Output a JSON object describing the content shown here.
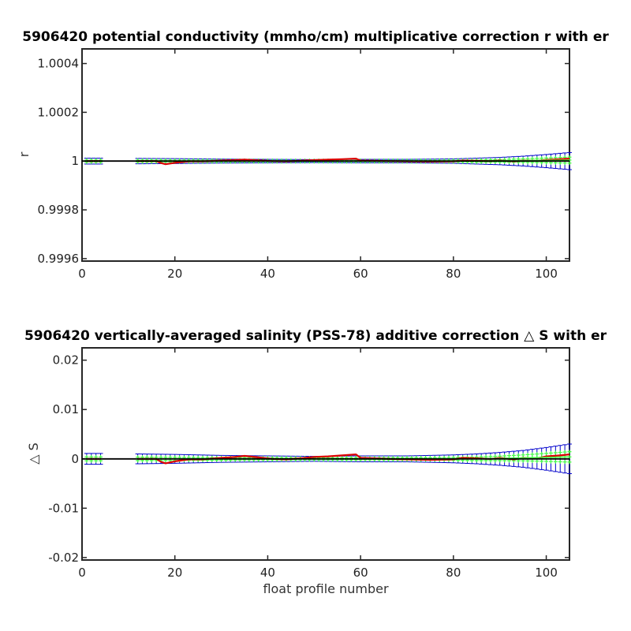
{
  "chart_data": [
    {
      "type": "line",
      "title": "5906420 potential conductivity (mmho/cm) multiplicative correction r with er",
      "xlabel": "",
      "ylabel": "r",
      "xlim": [
        0,
        105
      ],
      "ylim": [
        0.99959,
        1.00046
      ],
      "x_ticks": [
        0,
        20,
        40,
        60,
        80,
        100
      ],
      "y_ticks": [
        1.0004,
        1.0002,
        1,
        0.9998,
        0.9996
      ],
      "y_tick_labels": [
        "1.0004",
        "1.0002",
        "1",
        "0.9998",
        "0.9996"
      ],
      "grid": false,
      "error_half_width": {
        "x": [
          1,
          4,
          12,
          20,
          30,
          40,
          50,
          60,
          70,
          80,
          85,
          90,
          95,
          100,
          105
        ],
        "values": [
          1.2e-05,
          1.2e-05,
          1.1e-05,
          1e-05,
          8e-06,
          7e-06,
          6e-06,
          7e-06,
          7e-06,
          9e-06,
          1.2e-05,
          1.5e-05,
          2e-05,
          2.7e-05,
          3.5e-05
        ]
      },
      "series": [
        {
          "color": "#dd0000",
          "x": [
            1,
            4,
            12,
            16,
            17,
            18,
            20,
            23,
            26,
            30,
            33,
            35,
            38,
            41,
            44,
            47,
            50,
            53,
            56,
            59,
            60,
            63,
            66,
            70,
            75,
            80,
            82,
            85,
            88,
            90,
            93,
            95,
            98,
            100,
            103,
            105
          ],
          "values": [
            1.0,
            1.0,
            1.0,
            1.0,
            0.999992,
            0.999987,
            0.999993,
            0.999999,
            0.999999,
            1.000002,
            1.000004,
            1.000006,
            1.000003,
            1.0,
            0.999999,
            1.000001,
            1.000004,
            1.000006,
            1.000008,
            1.00001,
            1.000002,
            1.000001,
            1.0,
            0.999999,
            0.999998,
            0.999999,
            1.000002,
            1.000001,
            1.0,
            1.000002,
            0.999999,
            1.000002,
            1.000001,
            1.000005,
            1.000008,
            1.00001
          ]
        },
        {
          "color": "#44ff44",
          "x": [
            1,
            4,
            12,
            20,
            30,
            40,
            50,
            60,
            70,
            80,
            85,
            90,
            95,
            100,
            105
          ],
          "values": [
            1.0,
            1.0,
            1.0,
            1.0,
            1.0,
            1.0,
            1.0,
            1.0,
            1.0,
            1.0,
            1.0,
            1.000001,
            1.000002,
            1.000003,
            1.000004
          ]
        },
        {
          "color": "#000000",
          "x": [
            0,
            105
          ],
          "values": [
            1.0,
            1.0
          ]
        }
      ]
    },
    {
      "type": "line",
      "title": "5906420 vertically-averaged salinity (PSS-78) additive correction △ S with er",
      "xlabel": "float profile number",
      "ylabel": "△ S",
      "xlim": [
        0,
        105
      ],
      "ylim": [
        -0.0205,
        0.0225
      ],
      "x_ticks": [
        0,
        20,
        40,
        60,
        80,
        100
      ],
      "y_ticks": [
        0.02,
        0.01,
        0,
        -0.01,
        -0.02
      ],
      "y_tick_labels": [
        "0.02",
        "0.01",
        "0",
        "-0.01",
        "-0.02"
      ],
      "grid": false,
      "error_half_width": {
        "x": [
          1,
          4,
          12,
          20,
          30,
          40,
          50,
          60,
          70,
          80,
          85,
          90,
          95,
          100,
          105
        ],
        "values": [
          0.0011,
          0.0011,
          0.001,
          0.0009,
          0.0007,
          0.0006,
          0.0005,
          0.0006,
          0.0006,
          0.0008,
          0.001,
          0.0013,
          0.0017,
          0.0023,
          0.003
        ]
      },
      "series": [
        {
          "color": "#dd0000",
          "x": [
            1,
            4,
            12,
            16,
            17,
            18,
            20,
            23,
            26,
            30,
            33,
            35,
            38,
            41,
            44,
            47,
            50,
            53,
            56,
            59,
            60,
            63,
            66,
            70,
            75,
            80,
            82,
            85,
            88,
            90,
            93,
            95,
            98,
            100,
            103,
            105
          ],
          "values": [
            0.0,
            0.0,
            0.0,
            0.0,
            -0.0006,
            -0.0009,
            -0.0005,
            -0.0001,
            -0.0001,
            0.0002,
            0.0004,
            0.0006,
            0.0003,
            0.0,
            -0.0001,
            0.0001,
            0.0004,
            0.0005,
            0.0007,
            0.0009,
            0.0002,
            0.0001,
            0.0,
            -0.0001,
            -0.0002,
            -0.0001,
            0.0002,
            0.0001,
            0.0,
            0.0002,
            -0.0001,
            0.0002,
            0.0001,
            0.0005,
            0.0007,
            0.0009
          ]
        },
        {
          "color": "#44ff44",
          "x": [
            1,
            4,
            12,
            20,
            30,
            40,
            50,
            60,
            70,
            80,
            85,
            90,
            95,
            100,
            105
          ],
          "values": [
            0.0,
            0.0,
            0.0,
            0.0,
            0.0,
            0.0,
            0.0,
            0.0,
            0.0,
            0.0,
            0.0,
            0.0001,
            0.0002,
            0.0003,
            0.0004
          ]
        },
        {
          "color": "#000000",
          "x": [
            0,
            105
          ],
          "values": [
            0.0,
            0.0
          ]
        }
      ]
    }
  ]
}
